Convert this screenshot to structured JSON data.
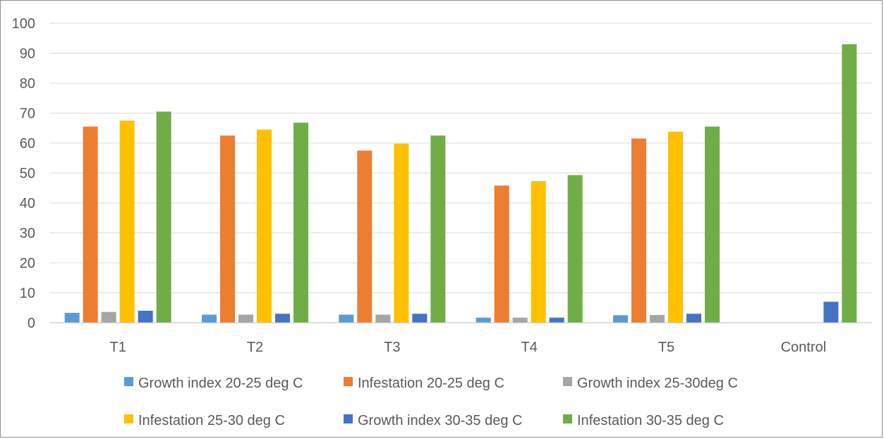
{
  "chart_data": {
    "type": "bar",
    "categories": [
      "T1",
      "T2",
      "T3",
      "T4",
      "T5",
      "Control"
    ],
    "series": [
      {
        "name": "Growth index 20-25 deg C",
        "color": "#5b9bd5",
        "values": [
          3.3,
          2.7,
          2.7,
          1.7,
          2.5,
          0
        ]
      },
      {
        "name": "Infestation 20-25 deg C",
        "color": "#ed7d31",
        "values": [
          65.5,
          62.5,
          57.5,
          45.8,
          61.5,
          0
        ]
      },
      {
        "name": "Growth index 25-30deg C",
        "color": "#a5a5a5",
        "values": [
          3.6,
          2.7,
          2.7,
          1.7,
          2.6,
          0
        ]
      },
      {
        "name": "Infestation 25-30 deg C",
        "color": "#ffc000",
        "values": [
          67.5,
          64.5,
          59.8,
          47.3,
          63.8,
          0
        ]
      },
      {
        "name": "Growth index 30-35 deg C",
        "color": "#4472c4",
        "values": [
          4.0,
          3.0,
          3.0,
          1.7,
          3.0,
          7.0
        ]
      },
      {
        "name": "Infestation 30-35 deg C",
        "color": "#70ad47",
        "values": [
          70.5,
          66.8,
          62.5,
          49.3,
          65.5,
          93.0
        ]
      }
    ],
    "ylim": [
      0,
      100
    ],
    "yticks": [
      "0",
      "10",
      "20",
      "30",
      "40",
      "50",
      "60",
      "70",
      "80",
      "90",
      "100"
    ],
    "grid": true,
    "legend_position": "bottom",
    "title": "",
    "xlabel": "",
    "ylabel": "",
    "gridline_color": "#d9d9d9",
    "axis_color": "#bfbfbf"
  }
}
